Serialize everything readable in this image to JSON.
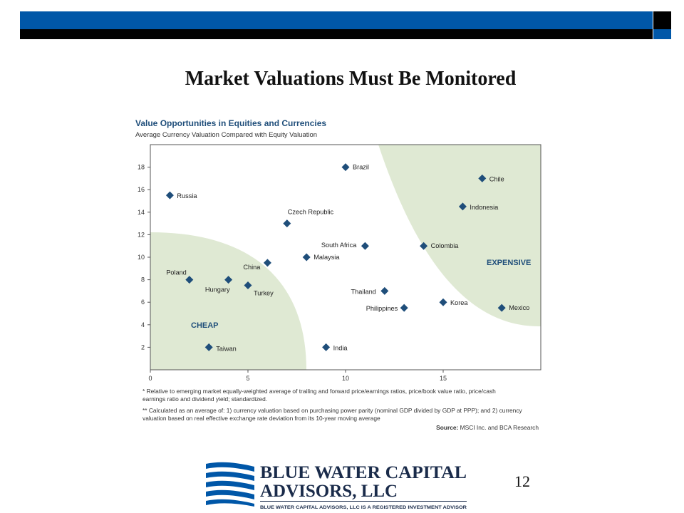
{
  "slide": {
    "title": "Market Valuations Must Be Monitored",
    "page_number": "12"
  },
  "logo": {
    "line1": "BLUE WATER CAPITAL",
    "line2": "ADVISORS, LLC",
    "tagline": "BLUE WATER CAPITAL ADVISORS, LLC IS A REGISTERED INVESTMENT ADVISOR"
  },
  "colors": {
    "brand_blue": "#0057a8",
    "marker": "#1f4e7a",
    "region_fill": "#dfe9d3",
    "heading_blue": "#1f4e7a"
  },
  "chart_data": {
    "type": "scatter",
    "title": "Value Opportunities in Equities and Currencies",
    "subtitle": "Average Currency Valuation Compared with Equity Valuation",
    "xlim": [
      0,
      20
    ],
    "ylim": [
      0,
      20
    ],
    "x_ticks": [
      0,
      5,
      10,
      15
    ],
    "y_ticks": [
      2,
      4,
      6,
      8,
      10,
      12,
      14,
      16,
      18
    ],
    "grid": false,
    "regions": [
      {
        "label": "CHEAP"
      },
      {
        "label": "EXPENSIVE"
      }
    ],
    "points": [
      {
        "label": "Russia",
        "x": 1,
        "y": 15.5
      },
      {
        "label": "Poland",
        "x": 2,
        "y": 8
      },
      {
        "label": "Hungary",
        "x": 4,
        "y": 8
      },
      {
        "label": "Turkey",
        "x": 5,
        "y": 7.5
      },
      {
        "label": "China",
        "x": 6,
        "y": 9.5
      },
      {
        "label": "Taiwan",
        "x": 3,
        "y": 2
      },
      {
        "label": "Czech Republic",
        "x": 7,
        "y": 13
      },
      {
        "label": "Malaysia",
        "x": 8,
        "y": 10
      },
      {
        "label": "India",
        "x": 9,
        "y": 2
      },
      {
        "label": "Brazil",
        "x": 10,
        "y": 18
      },
      {
        "label": "South Africa",
        "x": 11,
        "y": 11
      },
      {
        "label": "Thailand",
        "x": 12,
        "y": 7
      },
      {
        "label": "Philippines",
        "x": 13,
        "y": 5.5
      },
      {
        "label": "Colombia",
        "x": 14,
        "y": 11
      },
      {
        "label": "Korea",
        "x": 15,
        "y": 6
      },
      {
        "label": "Indonesia",
        "x": 16,
        "y": 14.5
      },
      {
        "label": "Chile",
        "x": 17,
        "y": 17
      },
      {
        "label": "Mexico",
        "x": 18,
        "y": 5.5
      }
    ],
    "footnotes": [
      "* Relative to emerging market equally-weighted average of trailing and forward price/earnings ratios, price/book value ratio, price/cash",
      "earnings ratio and dividend yield; standardized.",
      "** Calculated as an average of: 1) currency valuation based on purchasing power parity (nominal GDP divided by GDP at PPP); and 2) currency",
      "valuation based on real effective exchange rate deviation from its 10-year moving average"
    ],
    "source_label": "Source:",
    "source_text": "MSCI Inc. and BCA Research"
  }
}
